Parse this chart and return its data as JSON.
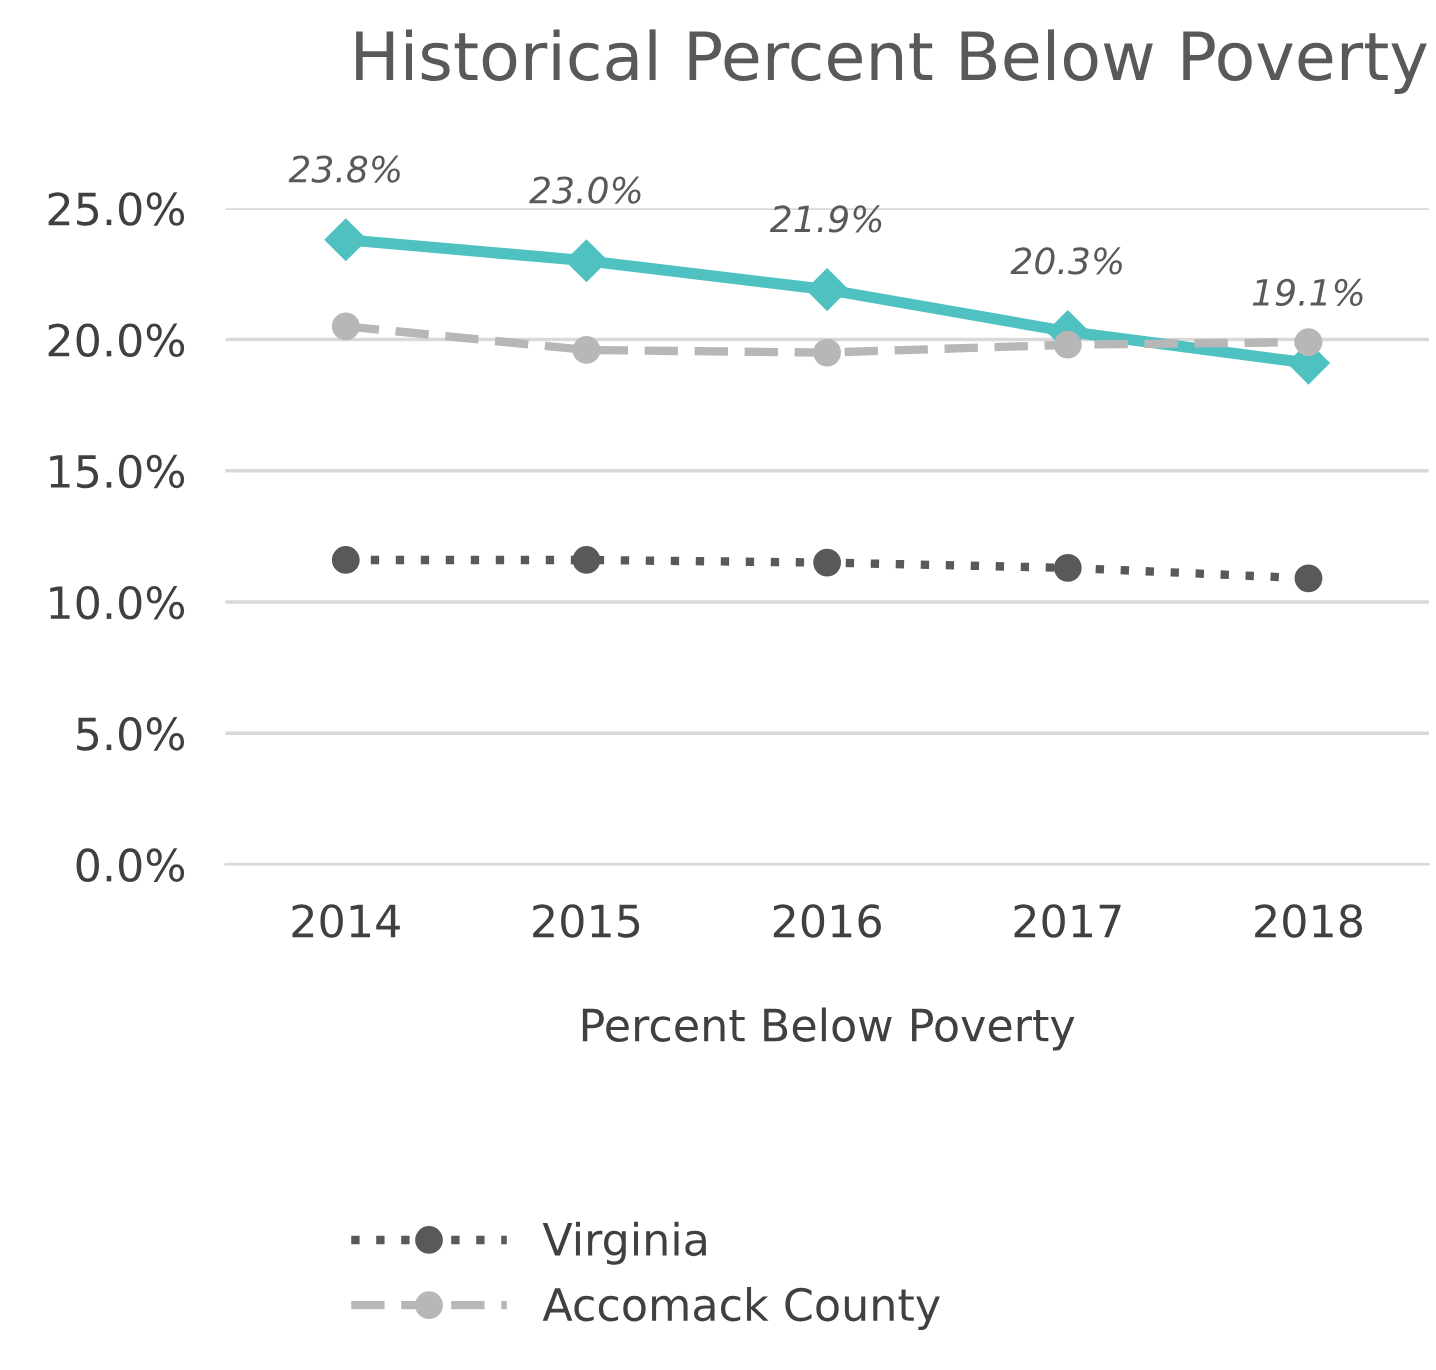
{
  "chart_data": {
    "type": "line",
    "title": "Historical Percent Below Poverty",
    "xlabel": "Percent Below Poverty",
    "categories": [
      "2014",
      "2015",
      "2016",
      "2017",
      "2018"
    ],
    "series": [
      {
        "color": "#4fc1c1",
        "values": [
          23.8,
          23.0,
          21.9,
          20.3,
          19.1
        ],
        "marker": "diamond",
        "line_style": "solid",
        "value_labels": [
          "23.8%",
          "23.0%",
          "21.9%",
          "20.3%",
          "19.1%"
        ]
      },
      {
        "name": "Virginia",
        "color": "#595959",
        "values": [
          11.6,
          11.6,
          11.5,
          11.3,
          10.9
        ],
        "marker": "circle",
        "line_style": "dotted"
      },
      {
        "name": "Accomack County",
        "color": "#b7b7b7",
        "values": [
          20.5,
          19.6,
          19.5,
          19.8,
          19.9
        ],
        "marker": "circle",
        "line_style": "dashed"
      }
    ],
    "ylim": [
      0,
      25
    ],
    "yticks": [
      {
        "value": 0,
        "label": "0.0%"
      },
      {
        "value": 5,
        "label": "5.0%"
      },
      {
        "value": 10,
        "label": "10.0%"
      },
      {
        "value": 15,
        "label": "15.0%"
      },
      {
        "value": 20,
        "label": "20.0%"
      },
      {
        "value": 25,
        "label": "25.0%"
      }
    ],
    "grid": "y",
    "legend": "bottom"
  }
}
